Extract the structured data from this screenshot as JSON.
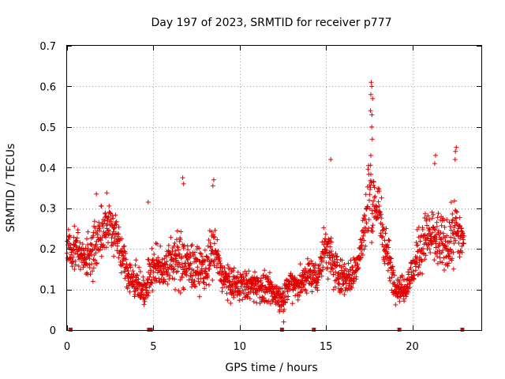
{
  "chart_data": {
    "type": "scatter",
    "title": "Day 197 of 2023, SRMTID for receiver p777",
    "xlabel": "GPS time / hours",
    "ylabel": "SRMTID / TECUs",
    "xlim": [
      0,
      24
    ],
    "ylim": [
      0,
      0.7
    ],
    "xticks": [
      0,
      5,
      10,
      15,
      20
    ],
    "yticks": [
      0,
      0.1,
      0.2,
      0.3,
      0.4,
      0.5,
      0.6,
      0.7
    ],
    "xtick_labels": [
      "0",
      "5",
      "10",
      "15",
      "20"
    ],
    "ytick_labels": [
      "0",
      "0.1",
      "0.2",
      "0.3",
      "0.4",
      "0.5",
      "0.6",
      "0.7"
    ],
    "grid": true,
    "marker": "+",
    "color": "#e00000",
    "series_name": "SRMTID",
    "profile": {
      "hours": [
        0.0,
        0.5,
        1.0,
        1.5,
        2.0,
        2.5,
        3.0,
        3.5,
        4.0,
        4.5,
        5.0,
        5.5,
        6.0,
        6.5,
        7.0,
        7.5,
        8.0,
        8.5,
        9.0,
        9.5,
        10.0,
        10.5,
        11.0,
        11.5,
        12.0,
        12.5,
        13.0,
        13.5,
        14.0,
        14.5,
        15.0,
        15.5,
        16.0,
        16.5,
        17.0,
        17.5,
        18.0,
        18.5,
        19.0,
        19.5,
        20.0,
        20.5,
        21.0,
        21.5,
        22.0,
        22.5,
        23.0
      ],
      "median": [
        0.2,
        0.2,
        0.18,
        0.19,
        0.24,
        0.26,
        0.22,
        0.14,
        0.12,
        0.1,
        0.16,
        0.15,
        0.17,
        0.17,
        0.16,
        0.15,
        0.15,
        0.2,
        0.13,
        0.11,
        0.11,
        0.11,
        0.11,
        0.1,
        0.09,
        0.08,
        0.12,
        0.11,
        0.14,
        0.13,
        0.21,
        0.15,
        0.13,
        0.13,
        0.19,
        0.33,
        0.3,
        0.2,
        0.11,
        0.1,
        0.14,
        0.21,
        0.23,
        0.22,
        0.2,
        0.25,
        0.22
      ],
      "spread": [
        0.06,
        0.06,
        0.05,
        0.08,
        0.08,
        0.07,
        0.06,
        0.05,
        0.05,
        0.05,
        0.07,
        0.06,
        0.07,
        0.09,
        0.08,
        0.07,
        0.06,
        0.09,
        0.05,
        0.05,
        0.05,
        0.04,
        0.05,
        0.05,
        0.04,
        0.04,
        0.05,
        0.05,
        0.05,
        0.05,
        0.08,
        0.07,
        0.05,
        0.05,
        0.07,
        0.12,
        0.1,
        0.07,
        0.04,
        0.04,
        0.06,
        0.08,
        0.09,
        0.09,
        0.08,
        0.1,
        0.06
      ]
    },
    "peaks": [
      {
        "x": 17.62,
        "y": 0.61
      },
      {
        "x": 17.65,
        "y": 0.6
      },
      {
        "x": 17.6,
        "y": 0.58
      },
      {
        "x": 17.7,
        "y": 0.57
      },
      {
        "x": 17.58,
        "y": 0.54
      },
      {
        "x": 17.66,
        "y": 0.53
      },
      {
        "x": 17.65,
        "y": 0.5
      },
      {
        "x": 17.68,
        "y": 0.47
      },
      {
        "x": 17.6,
        "y": 0.43
      },
      {
        "x": 15.28,
        "y": 0.42
      },
      {
        "x": 22.55,
        "y": 0.45
      },
      {
        "x": 22.5,
        "y": 0.44
      },
      {
        "x": 22.48,
        "y": 0.42
      },
      {
        "x": 21.35,
        "y": 0.43
      },
      {
        "x": 21.3,
        "y": 0.41
      },
      {
        "x": 6.7,
        "y": 0.375
      },
      {
        "x": 6.75,
        "y": 0.36
      },
      {
        "x": 8.5,
        "y": 0.37
      },
      {
        "x": 8.45,
        "y": 0.355
      },
      {
        "x": 1.7,
        "y": 0.335
      },
      {
        "x": 2.3,
        "y": 0.338
      },
      {
        "x": 4.7,
        "y": 0.315
      },
      {
        "x": 12.55,
        "y": 0.02
      },
      {
        "x": 12.3,
        "y": 0.045
      }
    ],
    "baseline_markers": [
      0.2,
      4.75,
      4.85,
      12.45,
      14.3,
      19.25,
      22.9
    ]
  }
}
